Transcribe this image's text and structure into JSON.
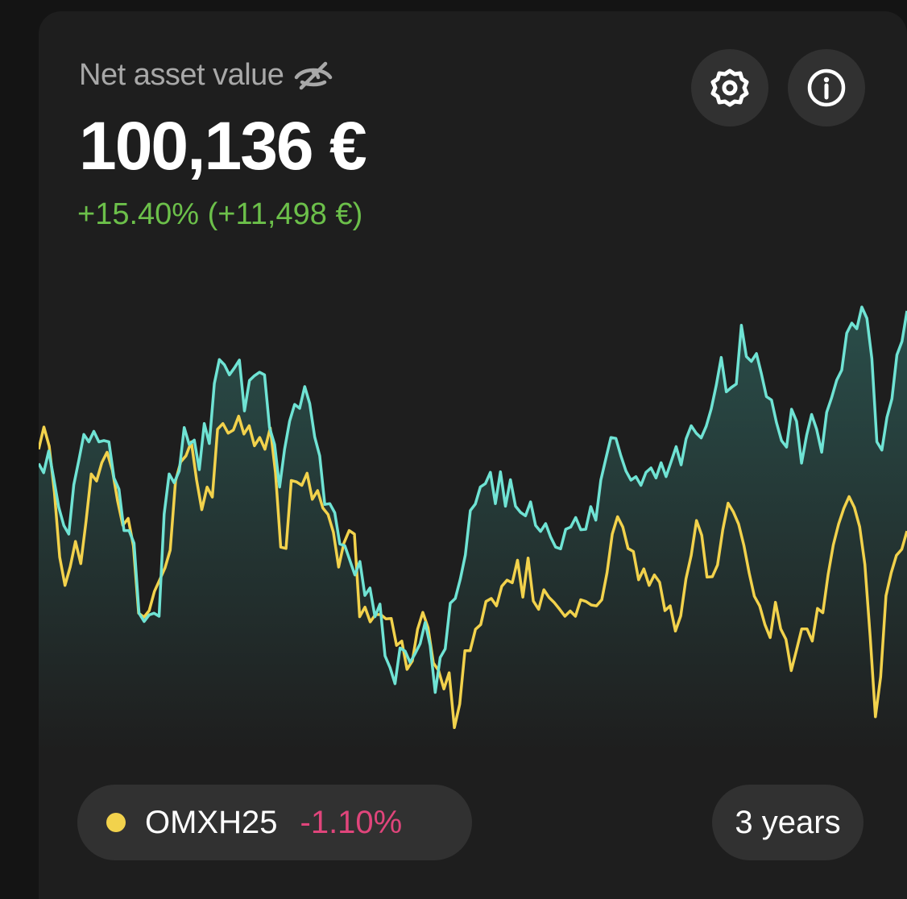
{
  "header": {
    "title": "Net asset value",
    "value": "100,136 €",
    "change": "+15.40% (+11,498 €)"
  },
  "icons": {
    "visibility": "eye-slash-icon",
    "settings": "gear-icon",
    "info": "info-icon"
  },
  "benchmark": {
    "name": "OMXH25",
    "change": "-1.10%"
  },
  "period": {
    "label": "3 years"
  },
  "colors": {
    "portfolio_line": "#6fe3d4",
    "benchmark_line": "#f2d24c",
    "positive": "#6cc04a",
    "negative": "#e0457b",
    "background": "#1e1e1e"
  },
  "chart_data": {
    "type": "line",
    "series": [
      {
        "values": [
          63.8,
          61.7,
          66.7,
          60.4,
          53.8,
          49.6,
          47.6,
          58.9,
          64.5,
          70.5,
          68.8,
          71.2,
          68.8,
          69.1,
          68.8,
          60.5,
          57.9,
          48.4,
          48.4,
          45.5,
          29.4,
          27.5,
          29.0,
          29.4,
          28.7,
          52.2,
          61.4,
          59.4,
          62.1,
          72.1,
          68.2,
          69.2,
          62.4,
          73.0,
          68.4,
          82.2,
          87.7,
          86.5,
          84.2,
          85.8,
          87.6,
          75.9,
          82.9,
          84.0,
          84.8,
          84.2,
          72.1,
          68.2,
          58.4,
          67.1,
          73.6,
          77.4,
          76.5,
          81.5,
          77.6,
          69.9,
          65.6,
          54.4,
          54.6,
          52.5,
          45.3,
          44.9,
          41.6,
          38.2,
          41.3,
          33.5,
          35.2,
          28.6,
          31.5,
          19.6,
          16.9,
          13.2,
          21.4,
          20.7,
          18.1,
          20.1,
          22.4,
          27.3,
          22.0,
          11.2,
          19.2,
          21.2,
          31.7,
          32.8,
          37.2,
          42.8,
          53.0,
          54.5,
          58.4,
          59.2,
          61.8,
          54.6,
          61.9,
          54.0,
          60.1,
          54.0,
          52.6,
          51.8,
          55.0,
          49.6,
          48.2,
          50.0,
          46.9,
          44.6,
          44.2,
          48.7,
          49.2,
          51.4,
          48.6,
          48.7,
          53.9,
          50.8,
          60.0,
          64.9,
          69.8,
          69.6,
          65.6,
          62.1,
          60.0,
          60.8,
          58.8,
          61.8,
          62.8,
          60.5,
          64.0,
          60.8,
          64.2,
          67.7,
          63.5,
          69.5,
          72.5,
          70.8,
          69.7,
          72.4,
          76.4,
          81.8,
          88.2,
          80.3,
          81.3,
          82.1,
          95.6,
          88.4,
          87.3,
          89.1,
          84.4,
          79.2,
          78.4,
          73.2,
          69.1,
          67.6,
          76.3,
          73.5,
          63.9,
          70.3,
          75.1,
          71.7,
          66.4,
          75.6,
          79.0,
          83.0,
          85.3,
          93.8,
          96.1,
          94.8,
          99.8,
          97.2,
          87.9,
          68.8,
          66.9,
          74.4,
          78.7,
          88.8,
          91.9,
          98.9
        ]
      },
      {
        "values": [
          67.1,
          72.2,
          67.8,
          57.1,
          42.3,
          35.8,
          40.1,
          45.9,
          40.8,
          50.5,
          61.4,
          59.8,
          64.0,
          66.4,
          62.3,
          55.2,
          49.6,
          51.2,
          44.9,
          29.4,
          28.5,
          30.0,
          34.4,
          37.1,
          39.8,
          43.9,
          59.8,
          64.2,
          65.6,
          68.8,
          60.1,
          53.2,
          58.4,
          56.1,
          71.7,
          73.0,
          70.8,
          71.5,
          74.7,
          70.6,
          72.5,
          67.9,
          69.8,
          67.1,
          72.0,
          61.7,
          44.6,
          44.3,
          59.9,
          59.6,
          58.8,
          61.6,
          55.6,
          57.6,
          53.6,
          52.1,
          48.0,
          40.0,
          45.5,
          48.4,
          47.6,
          28.6,
          30.8,
          27.4,
          29.1,
          29.1,
          28.1,
          28.2,
          22.0,
          23.0,
          16.5,
          18.4,
          25.7,
          29.6,
          26.0,
          18.0,
          16.2,
          12.0,
          15.7,
          3.1,
          8.5,
          20.8,
          20.8,
          25.7,
          26.8,
          32.1,
          32.8,
          31.1,
          35.6,
          37.0,
          36.4,
          41.6,
          33.1,
          42.1,
          32.2,
          30.3,
          34.8,
          33.0,
          31.8,
          30.3,
          28.7,
          29.9,
          28.7,
          32.5,
          32.1,
          31.3,
          31.1,
          32.5,
          38.7,
          47.6,
          51.6,
          49.2,
          44.3,
          43.6,
          37.1,
          39.6,
          35.8,
          38.2,
          36.5,
          30.0,
          31.1,
          25.3,
          28.8,
          37.3,
          42.7,
          50.7,
          47.3,
          37.7,
          37.8,
          40.5,
          48.6,
          54.7,
          52.7,
          49.9,
          45.0,
          38.7,
          33.3,
          31.1,
          26.8,
          23.8,
          31.9,
          25.8,
          23.4,
          16.2,
          20.9,
          25.8,
          25.8,
          23.0,
          30.5,
          29.5,
          38.2,
          45.1,
          49.9,
          53.5,
          56.2,
          53.7,
          49.3,
          40.6,
          24.0,
          5.6,
          14.8,
          33.4,
          38.7,
          42.7,
          44.1,
          48.3
        ]
      }
    ],
    "ylim": [
      0,
      100
    ]
  }
}
